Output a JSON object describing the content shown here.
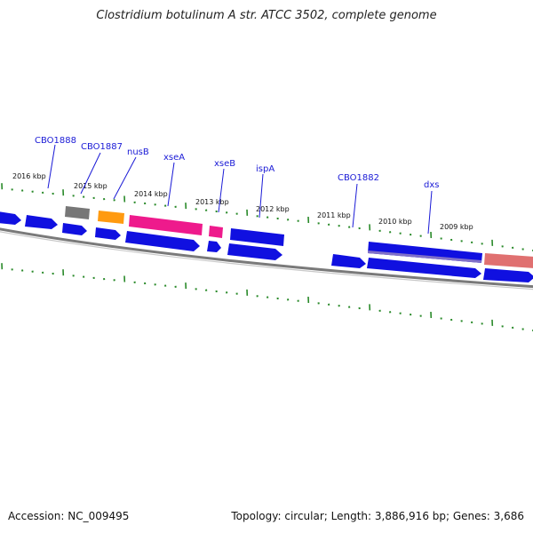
{
  "title": "Clostridium botulinum A str. ATCC 3502, complete genome",
  "accession": "Accession: NC_009495",
  "topology": "Topology: circular; Length: 3,886,916 bp; Genes: 3,686",
  "colors": {
    "cds": "#1010e0",
    "pseudo_gray": "#777777",
    "orange": "#ff9a10",
    "magenta": "#ee1a8c",
    "purple_band": "#7060c0",
    "salmon": "#e07070",
    "backbone": "#7a7a7a",
    "ticks": "#2a8a2a",
    "label": "#1a1ad6"
  },
  "kbp_labels": [
    "2016 kbp",
    "2015 kbp",
    "2014 kbp",
    "2013 kbp",
    "2012 kbp",
    "2011 kbp",
    "2010 kbp",
    "2009 kbp"
  ],
  "gene_labels": [
    "CBO1888",
    "CBO1887",
    "nusB",
    "xseA",
    "xseB",
    "ispA",
    "CBO1882",
    "dxs"
  ]
}
